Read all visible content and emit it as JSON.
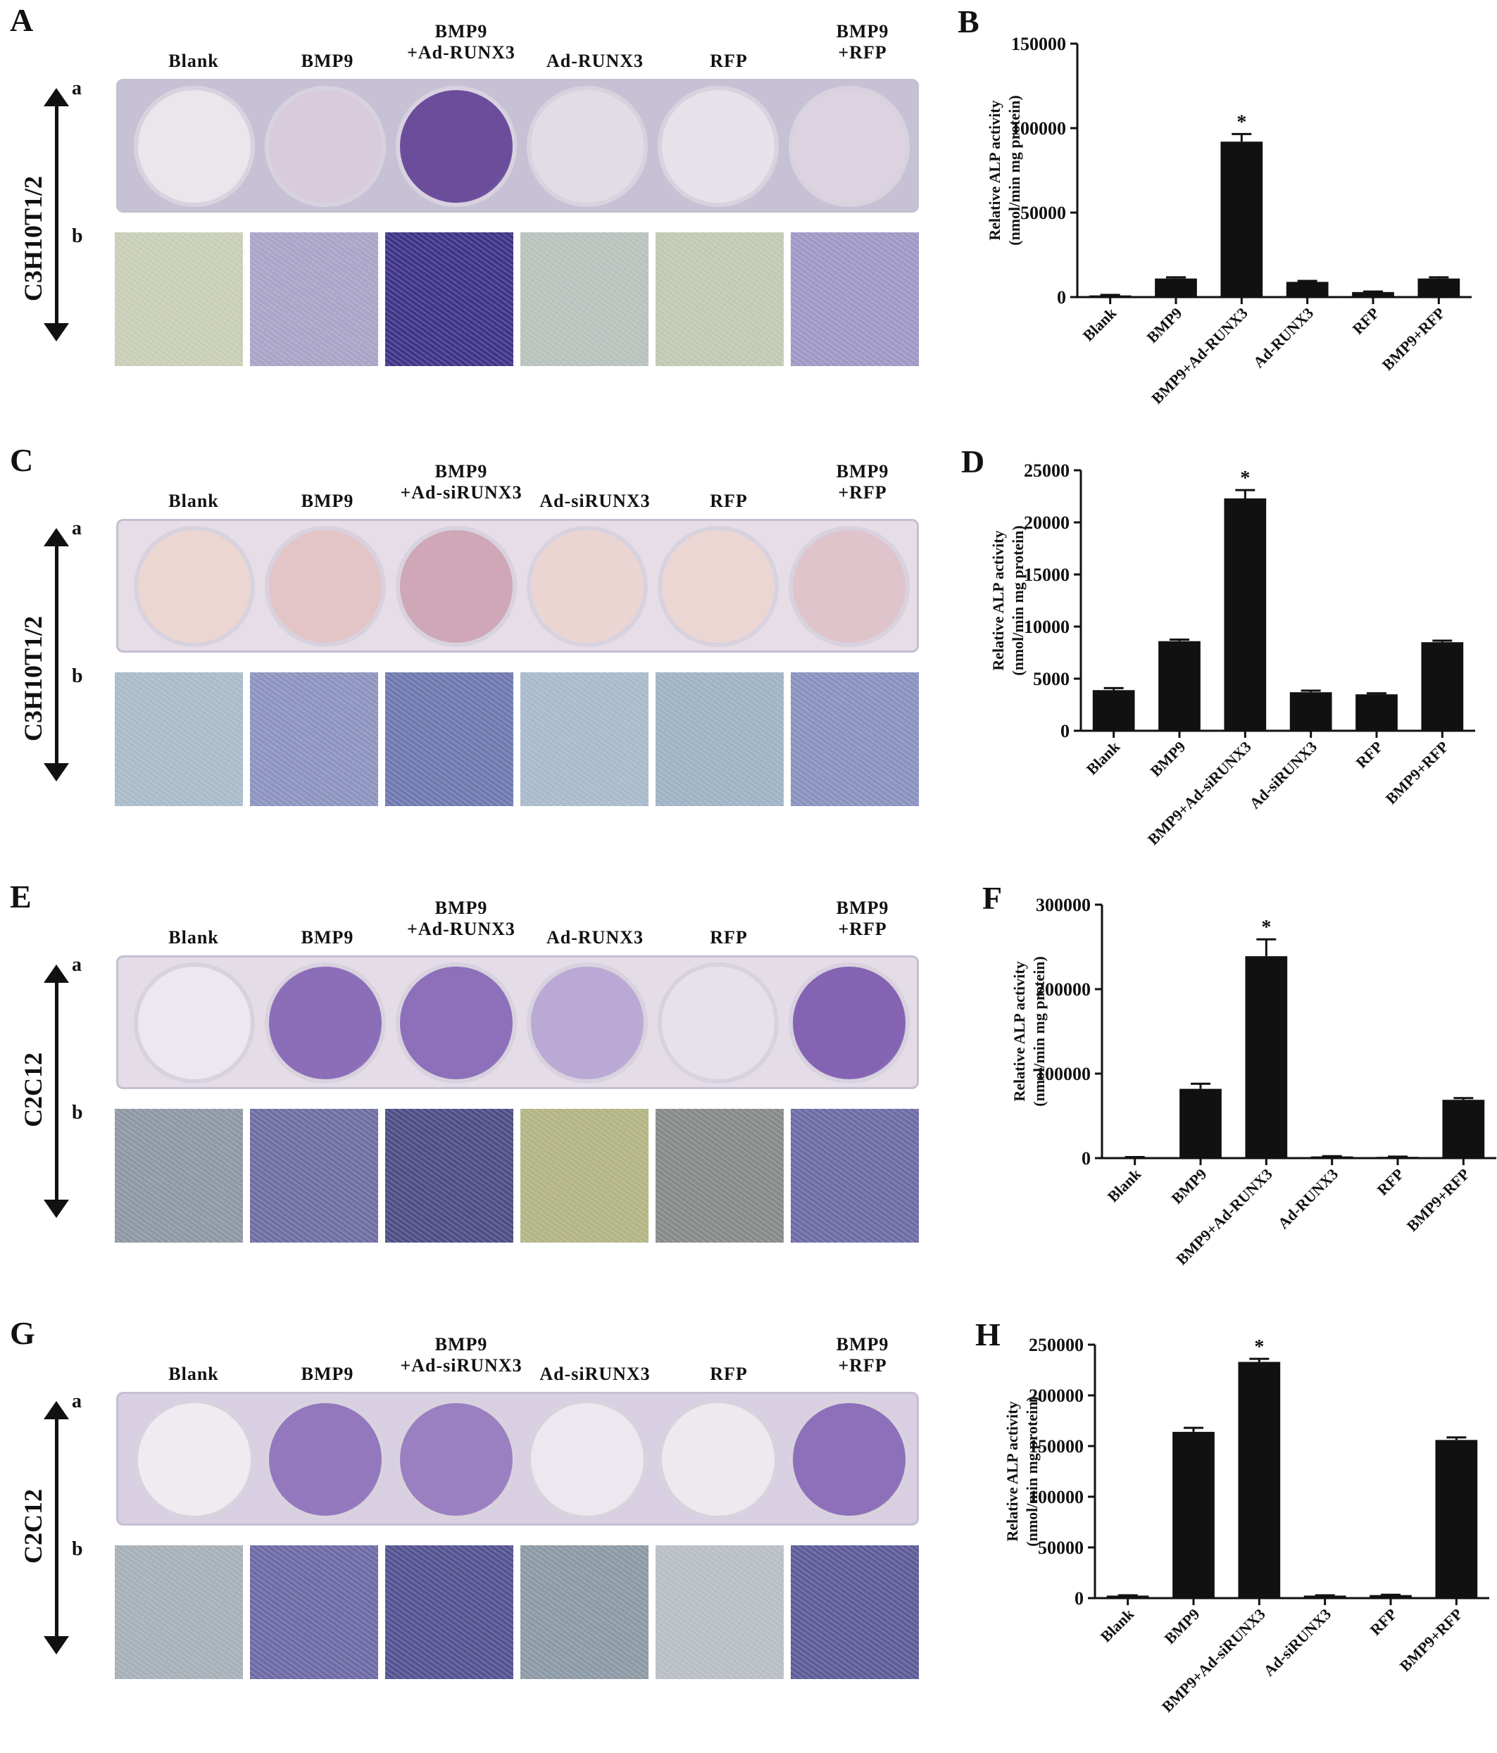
{
  "panels": [
    {
      "letter": "A",
      "cell_line": "C3H10T1/2",
      "row_a": "a",
      "row_b": "b",
      "columns": [
        [
          "Blank"
        ],
        [
          "BMP9"
        ],
        [
          "BMP9",
          "+Ad-RUNX3"
        ],
        [
          "Ad-RUNX3"
        ],
        [
          "RFP"
        ],
        [
          "BMP9",
          "+RFP"
        ]
      ],
      "plate_color": "#c7c1d6",
      "well_colors": [
        "#e9e6ec",
        "#d8cbdb",
        "#6b4d9c",
        "#e1dde6",
        "#e6e2ea",
        "#dcd2e0"
      ],
      "micro_colors": [
        "#c9cfb6",
        "#a9a4c8",
        "#3f3488",
        "#b9c2bd",
        "#c2c9b3",
        "#9f98c6"
      ]
    },
    {
      "letter": "C",
      "cell_line": "C3H10T1/2",
      "row_a": "a",
      "row_b": "b",
      "columns": [
        [
          "Blank"
        ],
        [
          "BMP9"
        ],
        [
          "BMP9",
          "+Ad-siRUNX3"
        ],
        [
          "Ad-siRUNX3"
        ],
        [
          "RFP"
        ],
        [
          "BMP9",
          "+RFP"
        ]
      ],
      "plate_color": "#e7dde6",
      "well_colors": [
        "#ecd6d2",
        "#e3c5c7",
        "#cfa7b6",
        "#ead5d3",
        "#ecd6d4",
        "#e0c4cb"
      ],
      "micro_colors": [
        "#a9bccb",
        "#8d94c0",
        "#6f79b0",
        "#a8bacb",
        "#9fb3c4",
        "#8a92c0"
      ]
    },
    {
      "letter": "E",
      "cell_line": "C2C12",
      "row_a": "a",
      "row_b": "b",
      "columns": [
        [
          "Blank"
        ],
        [
          "BMP9"
        ],
        [
          "BMP9",
          "+Ad-RUNX3"
        ],
        [
          "Ad-RUNX3"
        ],
        [
          "RFP"
        ],
        [
          "BMP9",
          "+RFP"
        ]
      ],
      "plate_color": "#e4dde8",
      "well_colors": [
        "#ece8ef",
        "#8c6db8",
        "#8d6fba",
        "#b9a9d4",
        "#e6e1ea",
        "#8463b3"
      ],
      "micro_colors": [
        "#8f98a5",
        "#6f6ea3",
        "#4e4d86",
        "#b3b585",
        "#868a89",
        "#6c6ca6"
      ]
    },
    {
      "letter": "G",
      "cell_line": "C2C12",
      "row_a": "a",
      "row_b": "b",
      "columns": [
        [
          "Blank"
        ],
        [
          "BMP9"
        ],
        [
          "BMP9",
          "+Ad-siRUNX3"
        ],
        [
          "Ad-siRUNX3"
        ],
        [
          "RFP"
        ],
        [
          "BMP9",
          "+RFP"
        ]
      ],
      "plate_color": "#d9cfe3",
      "well_colors": [
        "#efecf1",
        "#9478bd",
        "#9a7fc1",
        "#ebe8ef",
        "#ecE9ef",
        "#8e6fb9"
      ],
      "micro_colors": [
        "#a8b1b9",
        "#6d6aa6",
        "#545392",
        "#8c9aa5",
        "#b9bfc4",
        "#5e5b99"
      ]
    }
  ],
  "chart_data": [
    {
      "panel": "B",
      "type": "bar",
      "categories": [
        "Blank",
        "BMP9",
        "BMP9+Ad-RUNX3",
        "Ad-RUNX3",
        "RFP",
        "BMP9+RFP"
      ],
      "values": [
        1000,
        11000,
        92000,
        9000,
        3000,
        11000
      ],
      "errors": [
        300,
        700,
        4500,
        600,
        300,
        700
      ],
      "significant": [
        false,
        false,
        true,
        false,
        false,
        false
      ],
      "star": "*",
      "ylabel": [
        "Relative ALP activity",
        "(nmol/min mg protein)"
      ],
      "ylim": [
        0,
        150000
      ],
      "yticks": [
        "0",
        "50000",
        "100000",
        "150000"
      ]
    },
    {
      "panel": "D",
      "type": "bar",
      "categories": [
        "Blank",
        "BMP9",
        "BMP9+Ad-siRUNX3",
        "Ad-siRUNX3",
        "RFP",
        "BMP9+RFP"
      ],
      "values": [
        3900,
        8600,
        22300,
        3700,
        3500,
        8500
      ],
      "errors": [
        200,
        150,
        800,
        150,
        100,
        150
      ],
      "significant": [
        false,
        false,
        true,
        false,
        false,
        false
      ],
      "star": "*",
      "ylabel": [
        "Relative ALP activity",
        "(nmol/min mg protein)"
      ],
      "ylim": [
        0,
        25000
      ],
      "yticks": [
        "0",
        "5000",
        "10000",
        "15000",
        "20000",
        "25000"
      ]
    },
    {
      "panel": "F",
      "type": "bar",
      "categories": [
        "Blank",
        "BMP9",
        "BMP9+Ad-RUNX3",
        "Ad-RUNX3",
        "RFP",
        "BMP9+RFP"
      ],
      "values": [
        1000,
        82000,
        239000,
        2000,
        1500,
        69000
      ],
      "errors": [
        300,
        6000,
        20000,
        300,
        300,
        2000
      ],
      "significant": [
        false,
        false,
        true,
        false,
        false,
        false
      ],
      "star": "*",
      "ylabel": [
        "Relative ALP activity",
        "(nmol/min mg protein)"
      ],
      "ylim": [
        0,
        300000
      ],
      "yticks": [
        "0",
        "100000",
        "200000",
        "300000"
      ]
    },
    {
      "panel": "H",
      "type": "bar",
      "categories": [
        "Blank",
        "BMP9",
        "BMP9+Ad-siRUNX3",
        "Ad-siRUNX3",
        "RFP",
        "BMP9+RFP"
      ],
      "values": [
        2500,
        164000,
        233000,
        2500,
        3000,
        156000
      ],
      "errors": [
        300,
        4000,
        3000,
        300,
        300,
        2500
      ],
      "significant": [
        false,
        false,
        true,
        false,
        false,
        false
      ],
      "star": "*",
      "ylabel": [
        "Relative ALP activity",
        "(nmol/min mg protein)"
      ],
      "ylim": [
        0,
        250000
      ],
      "yticks": [
        "0",
        "50000",
        "100000",
        "150000",
        "200000",
        "250000"
      ]
    }
  ]
}
